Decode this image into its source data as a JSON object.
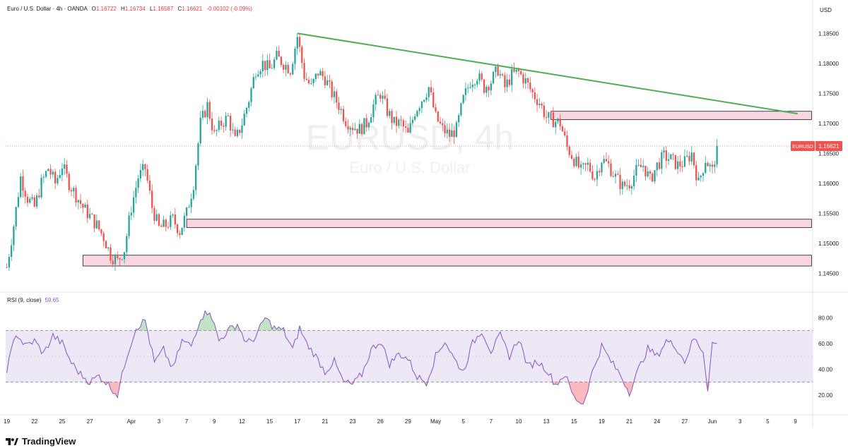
{
  "header": {
    "symbol_line": "Euro / U.S. Dollar · 4h · OANDA",
    "open_label": "O",
    "open": "1.16722",
    "high_label": "H",
    "high": "1.16734",
    "low_label": "L",
    "low": "1.16587",
    "close_label": "C",
    "close": "1.16621",
    "change": "-0.00102 (-0.09%)"
  },
  "currency_label": "USD",
  "watermark": {
    "symbol": "EURUSD, 4h",
    "name": "Euro / U.S. Dollar"
  },
  "price_badge": {
    "symbol": "EURUSD",
    "price": "1.16621"
  },
  "rsi": {
    "label": "RSI (9, close)",
    "value": "59.65",
    "upper": 70,
    "lower": 30
  },
  "brand": "TradingView",
  "colors": {
    "up": "#26a69a",
    "down": "#ef5350",
    "trendline": "#4caf50",
    "zone_fill": "#f8d7e0",
    "zone_border": "#131722",
    "rsi_line": "#7e57c2",
    "rsi_band": "#ede7f6"
  },
  "chart_data": {
    "type": "candlestick",
    "ylim": [
      1.1435,
      1.1875
    ],
    "y_ticks": [
      "1.14500",
      "1.15000",
      "1.15500",
      "1.16000",
      "1.16500",
      "1.17000",
      "1.17500",
      "1.18000",
      "1.18500"
    ],
    "x_ticks": [
      {
        "label": "19",
        "bar": 0
      },
      {
        "label": "22",
        "bar": 12
      },
      {
        "label": "25",
        "bar": 24
      },
      {
        "label": "27",
        "bar": 36
      },
      {
        "label": "Apr",
        "bar": 54
      },
      {
        "label": "3",
        "bar": 66
      },
      {
        "label": "7",
        "bar": 78
      },
      {
        "label": "9",
        "bar": 90
      },
      {
        "label": "12",
        "bar": 102
      },
      {
        "label": "15",
        "bar": 114
      },
      {
        "label": "17",
        "bar": 126
      },
      {
        "label": "21",
        "bar": 138
      },
      {
        "label": "23",
        "bar": 150
      },
      {
        "label": "26",
        "bar": 162
      },
      {
        "label": "29",
        "bar": 174
      },
      {
        "label": "May",
        "bar": 186
      },
      {
        "label": "5",
        "bar": 198
      },
      {
        "label": "7",
        "bar": 210
      },
      {
        "label": "10",
        "bar": 222
      },
      {
        "label": "13",
        "bar": 234
      },
      {
        "label": "15",
        "bar": 246
      },
      {
        "label": "19",
        "bar": 258
      },
      {
        "label": "21",
        "bar": 270
      },
      {
        "label": "24",
        "bar": 282
      },
      {
        "label": "27",
        "bar": 294
      },
      {
        "label": "Jun",
        "bar": 306
      },
      {
        "label": "3",
        "bar": 318
      },
      {
        "label": "5",
        "bar": 330
      },
      {
        "label": "9",
        "bar": 342
      }
    ],
    "bars_visible": 350,
    "close_anchors": [
      [
        0,
        1.146
      ],
      [
        3,
        1.153
      ],
      [
        6,
        1.161
      ],
      [
        9,
        1.1575
      ],
      [
        12,
        1.156
      ],
      [
        15,
        1.16
      ],
      [
        18,
        1.1625
      ],
      [
        21,
        1.16
      ],
      [
        24,
        1.163
      ],
      [
        27,
        1.16
      ],
      [
        30,
        1.158
      ],
      [
        33,
        1.156
      ],
      [
        36,
        1.1545
      ],
      [
        39,
        1.153
      ],
      [
        42,
        1.151
      ],
      [
        45,
        1.148
      ],
      [
        48,
        1.147
      ],
      [
        51,
        1.149
      ],
      [
        54,
        1.156
      ],
      [
        57,
        1.161
      ],
      [
        60,
        1.1625
      ],
      [
        63,
        1.156
      ],
      [
        66,
        1.1525
      ],
      [
        69,
        1.153
      ],
      [
        72,
        1.154
      ],
      [
        75,
        1.152
      ],
      [
        78,
        1.155
      ],
      [
        81,
        1.16
      ],
      [
        84,
        1.17
      ],
      [
        87,
        1.173
      ],
      [
        90,
        1.168
      ],
      [
        93,
        1.17
      ],
      [
        96,
        1.171
      ],
      [
        99,
        1.167
      ],
      [
        102,
        1.17
      ],
      [
        105,
        1.174
      ],
      [
        108,
        1.179
      ],
      [
        111,
        1.18
      ],
      [
        114,
        1.179
      ],
      [
        117,
        1.181
      ],
      [
        120,
        1.18
      ],
      [
        123,
        1.179
      ],
      [
        126,
        1.1845
      ],
      [
        129,
        1.178
      ],
      [
        132,
        1.176
      ],
      [
        135,
        1.1785
      ],
      [
        138,
        1.1775
      ],
      [
        141,
        1.175
      ],
      [
        144,
        1.173
      ],
      [
        147,
        1.1705
      ],
      [
        150,
        1.1695
      ],
      [
        153,
        1.169
      ],
      [
        156,
        1.17
      ],
      [
        159,
        1.173
      ],
      [
        162,
        1.175
      ],
      [
        165,
        1.172
      ],
      [
        168,
        1.17
      ],
      [
        171,
        1.17
      ],
      [
        174,
        1.168
      ],
      [
        177,
        1.172
      ],
      [
        180,
        1.174
      ],
      [
        183,
        1.176
      ],
      [
        186,
        1.171
      ],
      [
        189,
        1.169
      ],
      [
        192,
        1.168
      ],
      [
        195,
        1.169
      ],
      [
        198,
        1.174
      ],
      [
        201,
        1.177
      ],
      [
        204,
        1.178
      ],
      [
        207,
        1.176
      ],
      [
        210,
        1.177
      ],
      [
        213,
        1.179
      ],
      [
        216,
        1.176
      ],
      [
        219,
        1.178
      ],
      [
        222,
        1.1785
      ],
      [
        225,
        1.177
      ],
      [
        228,
        1.175
      ],
      [
        231,
        1.1735
      ],
      [
        234,
        1.171
      ],
      [
        237,
        1.1705
      ],
      [
        240,
        1.17
      ],
      [
        243,
        1.166
      ],
      [
        246,
        1.164
      ],
      [
        249,
        1.162
      ],
      [
        252,
        1.163
      ],
      [
        255,
        1.161
      ],
      [
        258,
        1.164
      ],
      [
        261,
        1.163
      ],
      [
        264,
        1.161
      ],
      [
        267,
        1.1595
      ],
      [
        270,
        1.16
      ],
      [
        273,
        1.162
      ],
      [
        276,
        1.163
      ],
      [
        279,
        1.1605
      ],
      [
        282,
        1.163
      ],
      [
        285,
        1.1645
      ],
      [
        288,
        1.164
      ],
      [
        291,
        1.163
      ],
      [
        294,
        1.1635
      ],
      [
        297,
        1.165
      ],
      [
        300,
        1.16
      ],
      [
        303,
        1.164
      ],
      [
        306,
        1.162
      ],
      [
        308,
        1.1662
      ]
    ],
    "trendline": [
      [
        126,
        1.185
      ],
      [
        343,
        1.1716
      ]
    ],
    "zones": [
      {
        "from_bar": 236,
        "to_bar": 349,
        "top": 1.172,
        "bottom": 1.1706
      },
      {
        "from_bar": 78,
        "to_bar": 349,
        "top": 1.154,
        "bottom": 1.1526
      },
      {
        "from_bar": 33,
        "to_bar": 349,
        "top": 1.148,
        "bottom": 1.1462
      }
    ],
    "rsi_ylim": [
      10,
      90
    ],
    "rsi_ticks": [
      "20.00",
      "40.00",
      "60.00",
      "80.00"
    ],
    "rsi_anchors": [
      [
        0,
        40
      ],
      [
        4,
        68
      ],
      [
        8,
        58
      ],
      [
        12,
        62
      ],
      [
        16,
        52
      ],
      [
        20,
        66
      ],
      [
        24,
        60
      ],
      [
        28,
        45
      ],
      [
        32,
        36
      ],
      [
        36,
        30
      ],
      [
        40,
        35
      ],
      [
        44,
        28
      ],
      [
        48,
        20
      ],
      [
        52,
        50
      ],
      [
        56,
        72
      ],
      [
        60,
        78
      ],
      [
        64,
        45
      ],
      [
        68,
        55
      ],
      [
        72,
        40
      ],
      [
        76,
        62
      ],
      [
        80,
        58
      ],
      [
        84,
        80
      ],
      [
        88,
        86
      ],
      [
        92,
        62
      ],
      [
        96,
        70
      ],
      [
        100,
        75
      ],
      [
        104,
        60
      ],
      [
        108,
        65
      ],
      [
        112,
        80
      ],
      [
        116,
        72
      ],
      [
        120,
        70
      ],
      [
        124,
        55
      ],
      [
        127,
        72
      ],
      [
        130,
        60
      ],
      [
        134,
        50
      ],
      [
        138,
        38
      ],
      [
        142,
        46
      ],
      [
        146,
        30
      ],
      [
        150,
        28
      ],
      [
        154,
        36
      ],
      [
        158,
        55
      ],
      [
        162,
        62
      ],
      [
        166,
        44
      ],
      [
        170,
        52
      ],
      [
        174,
        48
      ],
      [
        178,
        34
      ],
      [
        182,
        30
      ],
      [
        186,
        50
      ],
      [
        190,
        62
      ],
      [
        194,
        48
      ],
      [
        198,
        38
      ],
      [
        202,
        60
      ],
      [
        206,
        70
      ],
      [
        210,
        54
      ],
      [
        214,
        66
      ],
      [
        218,
        50
      ],
      [
        222,
        64
      ],
      [
        226,
        42
      ],
      [
        230,
        46
      ],
      [
        234,
        40
      ],
      [
        238,
        28
      ],
      [
        242,
        36
      ],
      [
        246,
        18
      ],
      [
        250,
        13
      ],
      [
        254,
        38
      ],
      [
        258,
        58
      ],
      [
        262,
        46
      ],
      [
        266,
        36
      ],
      [
        270,
        22
      ],
      [
        274,
        40
      ],
      [
        278,
        56
      ],
      [
        282,
        50
      ],
      [
        286,
        62
      ],
      [
        290,
        58
      ],
      [
        294,
        46
      ],
      [
        298,
        64
      ],
      [
        302,
        54
      ],
      [
        304,
        25
      ],
      [
        306,
        60
      ],
      [
        308,
        60
      ]
    ]
  }
}
